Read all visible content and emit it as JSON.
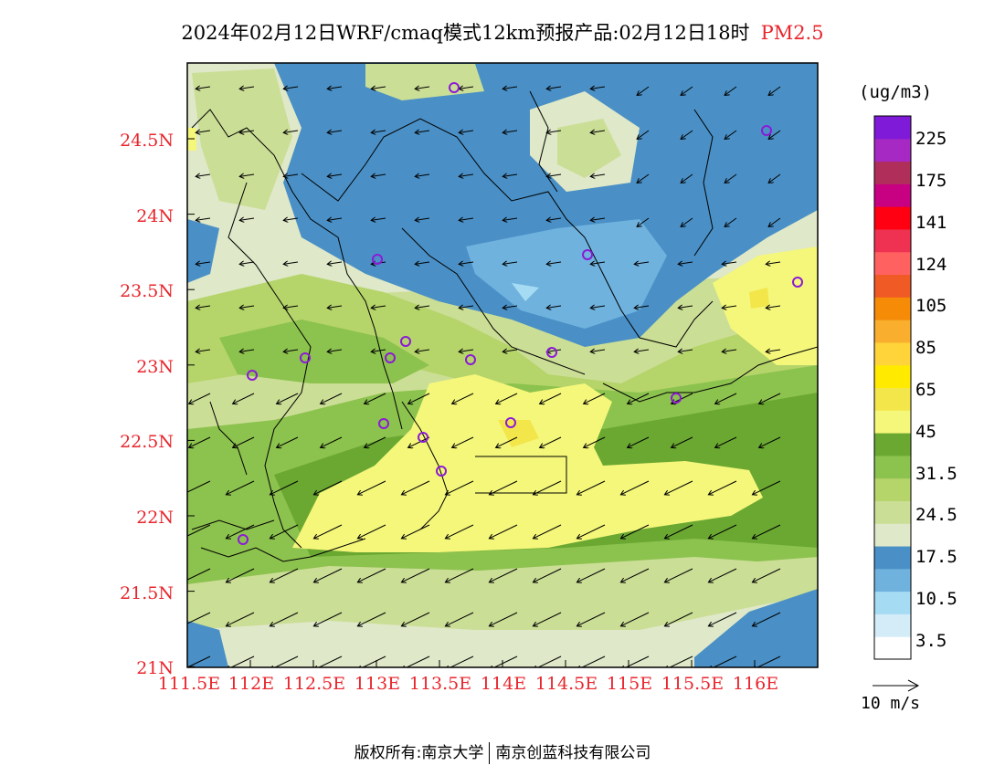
{
  "title": {
    "main": "2024年02月12日WRF/cmaq模式12km预报产品:02月12日18时",
    "pollutant": "PM2.5"
  },
  "map": {
    "lat_labels": [
      "24.5N",
      "24N",
      "23.5N",
      "23N",
      "22.5N",
      "22N",
      "21.5N",
      "21N"
    ],
    "lon_labels": [
      "111.5E",
      "112E",
      "112.5E",
      "113E",
      "113.5E",
      "114E",
      "114.5E",
      "115E",
      "115.5E",
      "116E"
    ]
  },
  "colorbar": {
    "unit": "(ug/m3)",
    "colors": [
      "#ffffff",
      "#d4ecf7",
      "#a6dcf3",
      "#6fb2de",
      "#4a90c6",
      "#dfe8c8",
      "#cbde96",
      "#b5d46a",
      "#8cc24e",
      "#6aa832",
      "#f5f77a",
      "#f3e64b",
      "#ffea00",
      "#ffd33a",
      "#f9ae2e",
      "#f58b07",
      "#f05a24",
      "#ff6161",
      "#ef3251",
      "#ff0012",
      "#c80082",
      "#b02e5a",
      "#a629c4",
      "#7e1ad8"
    ],
    "labels": [
      "225",
      "175",
      "141",
      "124",
      "105",
      "85",
      "65",
      "45",
      "31.5",
      "24.5",
      "17.5",
      "10.5",
      "3.5"
    ]
  },
  "wind_reference": {
    "label": "10 m/s"
  },
  "footer": {
    "copyright": "版权所有:南京大学",
    "company": "南京创蓝科技有限公司"
  }
}
